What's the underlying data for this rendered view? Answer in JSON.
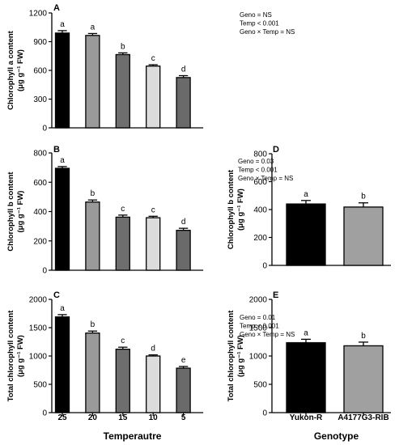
{
  "chart_data": [
    {
      "type": "bar",
      "panel_label": "A",
      "categories": [
        "25",
        "20",
        "15",
        "10",
        "5"
      ],
      "values": [
        990,
        965,
        765,
        645,
        525
      ],
      "errors": [
        25,
        20,
        18,
        14,
        20
      ],
      "letters": [
        "a",
        "a",
        "b",
        "c",
        "d"
      ],
      "colors": [
        "#000000",
        "#9a9a9a",
        "#6e6e6e",
        "#dcdcdc",
        "#6a6a6a"
      ],
      "ylabel_lines": [
        "Chlorophyll a content",
        "(μg g⁻¹ FW)"
      ],
      "ylim": [
        0,
        1200
      ],
      "yticks": [
        0,
        300,
        600,
        900,
        1200
      ],
      "stats": [
        "Geno = NS",
        "Temp < 0.001",
        "Geno × Temp = NS"
      ],
      "xtick_labels_shown": false
    },
    {
      "type": "bar",
      "panel_label": "B",
      "categories": [
        "25",
        "20",
        "15",
        "10",
        "5"
      ],
      "values": [
        695,
        465,
        362,
        358,
        272
      ],
      "errors": [
        12,
        14,
        14,
        10,
        14
      ],
      "letters": [
        "a",
        "b",
        "c",
        "c",
        "d"
      ],
      "colors": [
        "#000000",
        "#9a9a9a",
        "#6e6e6e",
        "#dcdcdc",
        "#6a6a6a"
      ],
      "ylabel_lines": [
        "Chlorophyll b content",
        "(μg g⁻¹ FW)"
      ],
      "ylim": [
        0,
        800
      ],
      "yticks": [
        0,
        200,
        400,
        600,
        800
      ],
      "stats": [
        "Geno = 0.03",
        "Temp < 0.001",
        "Geno × Temp = NS"
      ],
      "xtick_labels_shown": false
    },
    {
      "type": "bar",
      "panel_label": "C",
      "categories": [
        "25",
        "20",
        "15",
        "10",
        "5"
      ],
      "values": [
        1690,
        1405,
        1120,
        1000,
        785
      ],
      "errors": [
        40,
        35,
        35,
        20,
        30
      ],
      "letters": [
        "a",
        "b",
        "c",
        "d",
        "e"
      ],
      "colors": [
        "#000000",
        "#9a9a9a",
        "#6e6e6e",
        "#dcdcdc",
        "#6a6a6a"
      ],
      "ylabel_lines": [
        "Total chlorophyll content",
        "(μg g⁻¹ FW)"
      ],
      "ylim": [
        0,
        2000
      ],
      "yticks": [
        0,
        500,
        1000,
        1500,
        2000
      ],
      "stats": [
        "Geno = 0.01",
        "Temp < 0.001",
        "Geno × Temp = NS"
      ],
      "xtick_labels_shown": true,
      "xlabel": "Temperautre"
    },
    {
      "type": "bar",
      "panel_label": "D",
      "categories": [
        "Yukon-R",
        "A4177G3-RIB"
      ],
      "values": [
        440,
        418
      ],
      "errors": [
        25,
        30
      ],
      "letters": [
        "a",
        "b"
      ],
      "colors": [
        "#000000",
        "#a0a0a0"
      ],
      "ylabel_lines": [
        "Chlorophyll b content",
        "(μg g⁻¹ FW)"
      ],
      "ylim": [
        0,
        800
      ],
      "yticks": [
        0,
        200,
        400,
        600,
        800
      ],
      "stats": [],
      "xtick_labels_shown": false
    },
    {
      "type": "bar",
      "panel_label": "E",
      "categories": [
        "Yukon-R",
        "A4177G3-RIB"
      ],
      "values": [
        1235,
        1180
      ],
      "errors": [
        60,
        65
      ],
      "letters": [
        "a",
        "b"
      ],
      "colors": [
        "#000000",
        "#a0a0a0"
      ],
      "ylabel_lines": [
        "Total chlorophyll content",
        "(μg g⁻¹ FW)"
      ],
      "ylim": [
        0,
        2000
      ],
      "yticks": [
        0,
        500,
        1000,
        1500,
        2000
      ],
      "stats": [],
      "xtick_labels_shown": true,
      "xlabel": "Genotype"
    }
  ]
}
